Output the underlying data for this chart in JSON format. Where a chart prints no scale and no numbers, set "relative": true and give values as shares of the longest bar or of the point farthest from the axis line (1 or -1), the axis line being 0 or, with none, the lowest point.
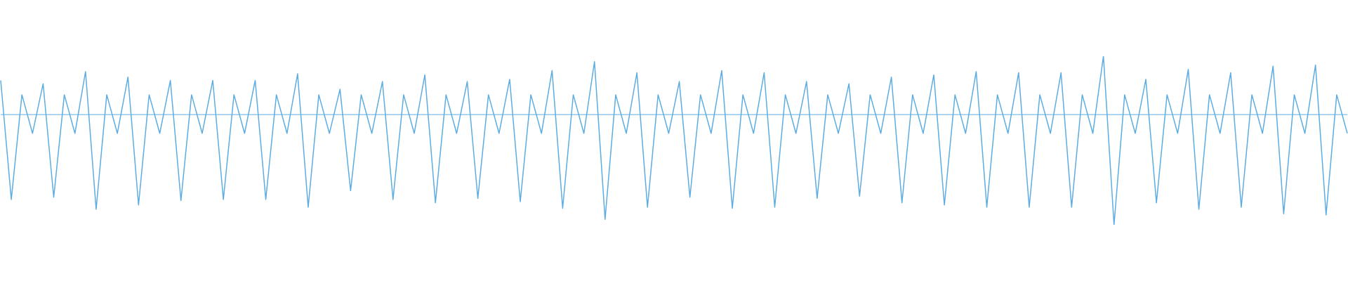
{
  "chart_data": {
    "type": "line",
    "relative": true,
    "grid": false,
    "legend": false,
    "ref_lines": [
      {
        "axis": "y",
        "value": 0,
        "color": "#5dade2"
      }
    ],
    "categories": [
      null,
      null,
      null,
      null,
      null,
      null,
      null,
      null,
      null,
      null,
      null,
      null,
      null,
      null,
      null,
      null,
      null,
      null,
      null,
      null,
      null,
      null,
      null,
      null,
      null,
      null,
      null,
      null,
      null,
      null,
      null,
      null,
      null,
      null,
      null,
      null,
      null,
      null,
      null,
      null,
      null,
      null,
      null,
      null,
      null,
      null,
      null,
      null,
      null,
      null,
      null,
      null,
      null,
      null,
      null,
      null,
      null,
      null,
      null,
      null,
      null,
      null,
      null,
      null,
      null,
      null,
      null,
      null,
      null,
      null,
      null,
      null,
      null,
      null,
      null,
      null,
      null,
      null,
      null,
      null,
      null,
      null,
      null,
      null,
      null,
      null,
      null,
      null,
      null,
      null,
      null,
      null,
      null,
      null,
      null,
      null,
      null,
      null,
      null,
      null,
      null,
      null,
      null,
      null,
      null,
      null,
      null,
      null,
      null,
      null,
      null,
      null,
      null,
      null,
      null,
      null,
      null,
      null,
      null,
      null,
      null,
      null,
      null,
      null,
      null,
      null,
      null,
      null
    ],
    "series": [
      {
        "color": "#5dade2",
        "values": [
          0.31,
          -0.77,
          0.18,
          -0.17,
          0.28,
          -0.75,
          0.18,
          -0.17,
          0.39,
          -0.86,
          0.18,
          -0.17,
          0.34,
          -0.82,
          0.18,
          -0.17,
          0.31,
          -0.78,
          0.18,
          -0.17,
          0.31,
          -0.77,
          0.18,
          -0.17,
          0.31,
          -0.77,
          0.18,
          -0.17,
          0.37,
          -0.84,
          0.18,
          -0.17,
          0.23,
          -0.69,
          0.18,
          -0.17,
          0.3,
          -0.77,
          0.18,
          -0.17,
          0.36,
          -0.8,
          0.18,
          -0.17,
          0.3,
          -0.76,
          0.18,
          -0.17,
          0.32,
          -0.79,
          0.18,
          -0.17,
          0.4,
          -0.85,
          0.18,
          -0.17,
          0.48,
          -0.95,
          0.18,
          -0.17,
          0.38,
          -0.84,
          0.18,
          -0.17,
          0.3,
          -0.75,
          0.18,
          -0.17,
          0.4,
          -0.85,
          0.18,
          -0.17,
          0.38,
          -0.84,
          0.18,
          -0.17,
          0.3,
          -0.76,
          0.18,
          -0.17,
          0.28,
          -0.74,
          0.18,
          -0.17,
          0.34,
          -0.8,
          0.18,
          -0.17,
          0.36,
          -0.82,
          0.18,
          -0.17,
          0.39,
          -0.84,
          0.18,
          -0.17,
          0.38,
          -0.84,
          0.18,
          -0.17,
          0.38,
          -0.84,
          0.18,
          -0.17,
          0.53,
          -1,
          0.18,
          -0.17,
          0.32,
          -0.8,
          0.18,
          -0.17,
          0.41,
          -0.86,
          0.18,
          -0.17,
          0.38,
          -0.84,
          0.18,
          -0.17,
          0.44,
          -0.9,
          0.18,
          -0.17,
          0.45,
          -0.91,
          0.18,
          -0.17
        ]
      }
    ]
  }
}
